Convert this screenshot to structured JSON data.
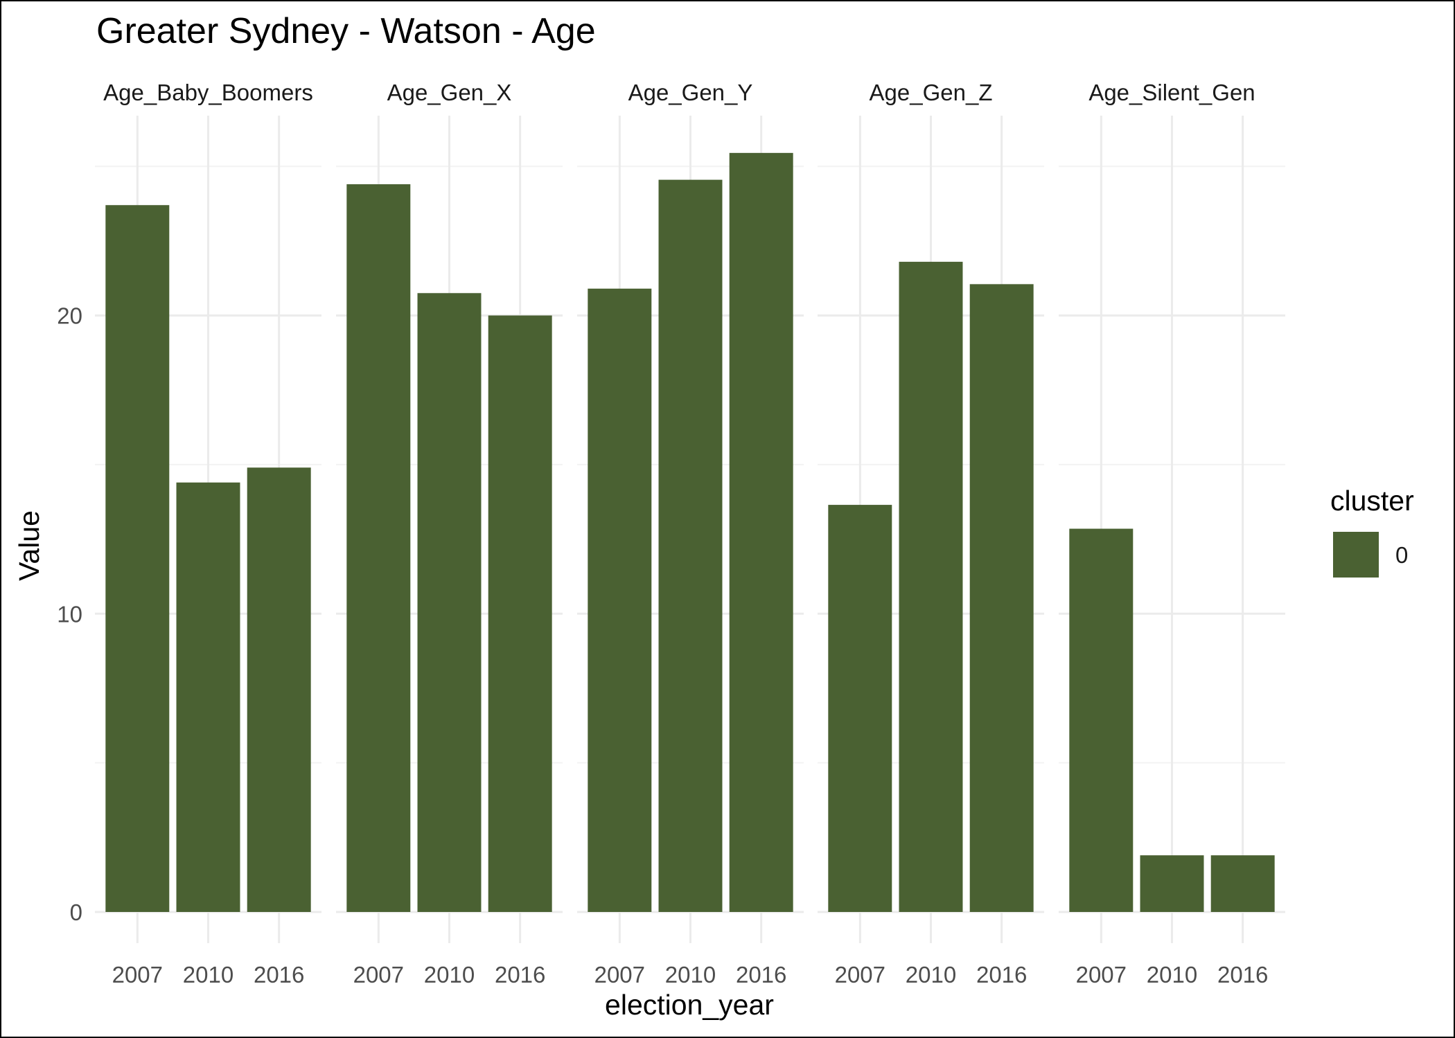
{
  "chart_data": {
    "type": "bar",
    "title": "Greater Sydney - Watson - Age",
    "xlabel": "election_year",
    "ylabel": "Value",
    "ylim": [
      0,
      26.7
    ],
    "yticks": [
      "0",
      "10",
      "20"
    ],
    "grid": true,
    "legend": {
      "title": "cluster",
      "entries": [
        "0"
      ],
      "placement": "right"
    },
    "bar_color": "#4a6132",
    "categories": [
      "2007",
      "2010",
      "2016"
    ],
    "panels": [
      {
        "name": "Age_Baby_Boomers",
        "label": "Age_Baby_Boomers",
        "values": [
          23.7,
          14.4,
          14.9
        ]
      },
      {
        "name": "Age_Gen_X",
        "label": "Age_Gen_X",
        "values": [
          24.4,
          20.75,
          20.0
        ]
      },
      {
        "name": "Age_Gen_Y",
        "label": "Age_Gen_Y",
        "values": [
          20.9,
          24.55,
          25.45
        ]
      },
      {
        "name": "Age_Gen_Z",
        "label": "Age_Gen_Z",
        "values": [
          13.65,
          21.8,
          21.05
        ]
      },
      {
        "name": "Age_Silent_Gen",
        "label": "Age_Silent_Gen",
        "values": [
          12.85,
          1.9,
          1.9
        ]
      }
    ]
  }
}
